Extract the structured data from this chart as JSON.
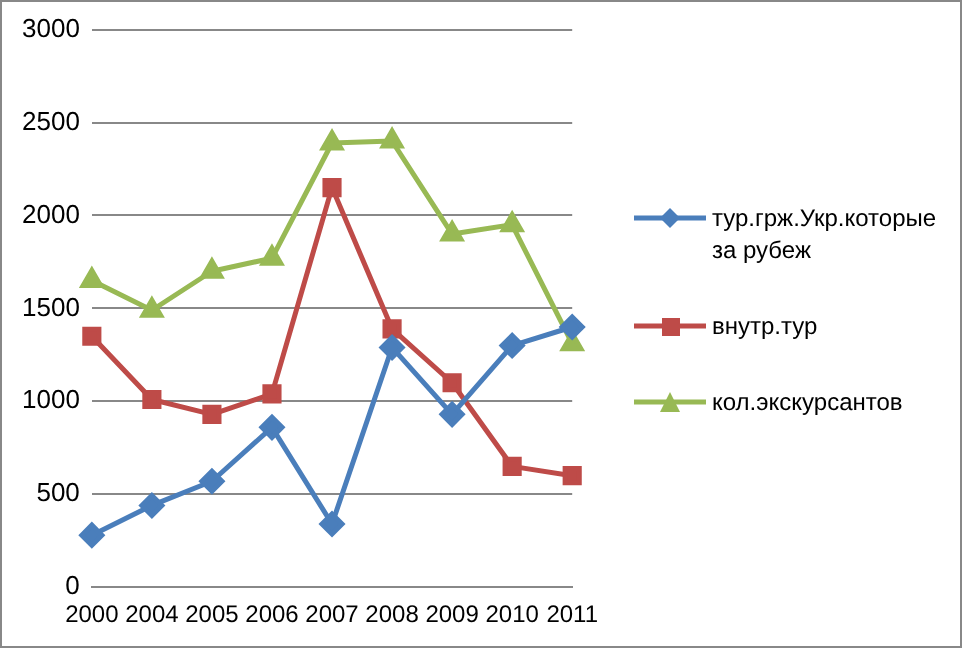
{
  "chart_data": {
    "type": "line",
    "categories": [
      "2000",
      "2004",
      "2005",
      "2006",
      "2007",
      "2008",
      "2009",
      "2010",
      "2011"
    ],
    "series": [
      {
        "name": "тур.грж.Укр.которые за рубеж",
        "color": "#4a7ebb",
        "marker": "diamond",
        "values": [
          280,
          440,
          570,
          860,
          340,
          1290,
          930,
          1300,
          1400
        ]
      },
      {
        "name": "внутр.тур",
        "color": "#be4b48",
        "marker": "square",
        "values": [
          1350,
          1010,
          930,
          1040,
          2150,
          1390,
          1100,
          650,
          600
        ]
      },
      {
        "name": "кол.экскурсантов",
        "color": "#98b954",
        "marker": "triangle",
        "values": [
          1650,
          1490,
          1700,
          1770,
          2390,
          2400,
          1900,
          1950,
          1310
        ]
      }
    ],
    "ylim": [
      0,
      3000
    ],
    "yticks": [
      0,
      500,
      1000,
      1500,
      2000,
      2500,
      3000
    ],
    "grid": "y",
    "legend": "right"
  }
}
